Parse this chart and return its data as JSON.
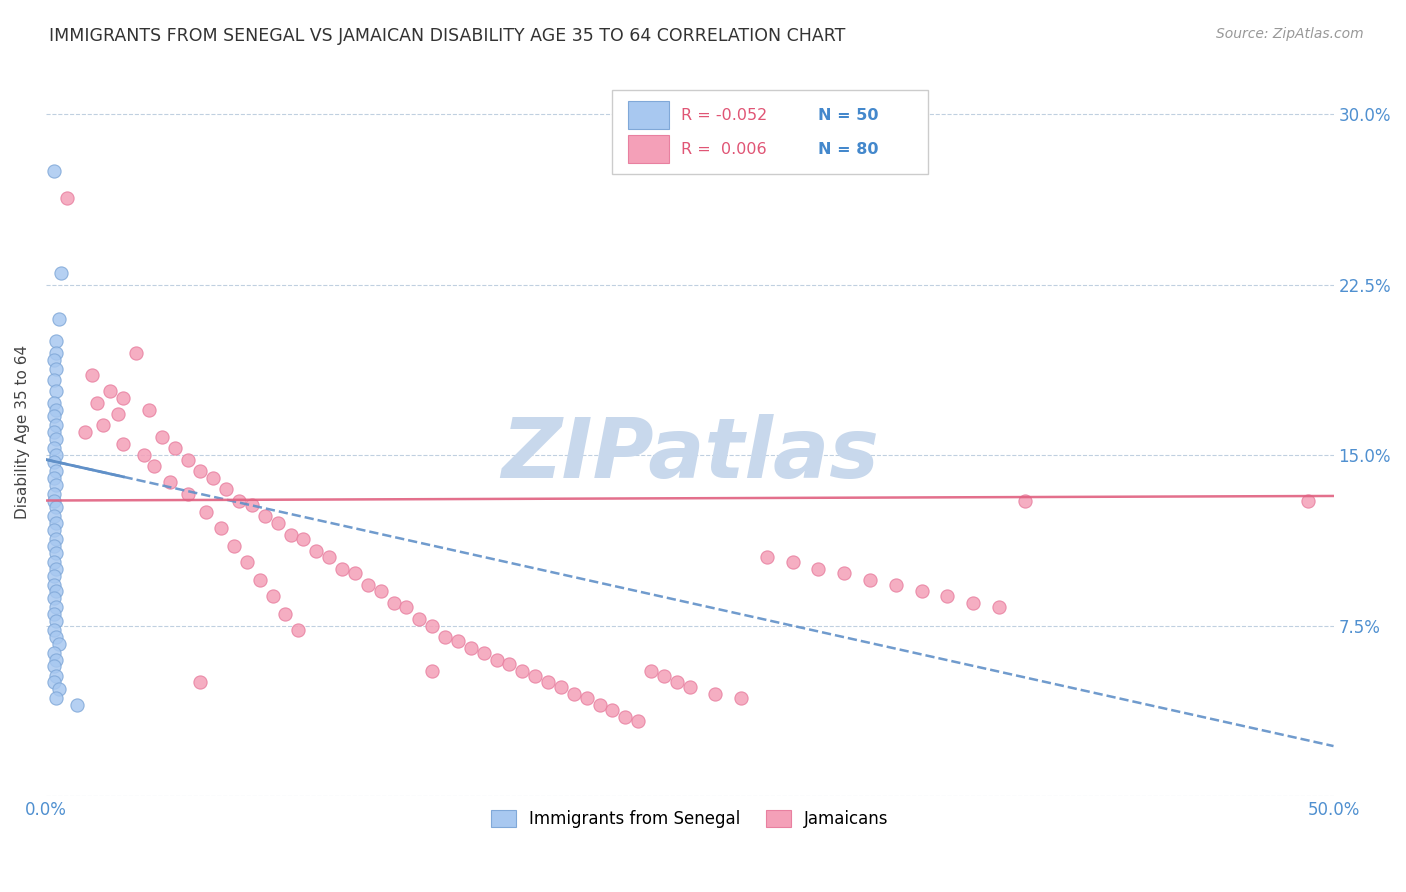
{
  "title": "IMMIGRANTS FROM SENEGAL VS JAMAICAN DISABILITY AGE 35 TO 64 CORRELATION CHART",
  "source": "Source: ZipAtlas.com",
  "ylabel": "Disability Age 35 to 64",
  "color_senegal": "#a8c8f0",
  "color_jamaican": "#f4a0b8",
  "edge_senegal": "#80a8d8",
  "edge_jamaican": "#e880a0",
  "trendline_senegal_color": "#6090c8",
  "trendline_jamaican_color": "#e06080",
  "watermark_color": "#c8d8ec",
  "xlim": [
    0,
    0.5
  ],
  "ylim": [
    0,
    0.32
  ],
  "scatter_senegal": [
    [
      0.003,
      0.275
    ],
    [
      0.006,
      0.23
    ],
    [
      0.005,
      0.21
    ],
    [
      0.004,
      0.2
    ],
    [
      0.004,
      0.195
    ],
    [
      0.003,
      0.192
    ],
    [
      0.004,
      0.188
    ],
    [
      0.003,
      0.183
    ],
    [
      0.004,
      0.178
    ],
    [
      0.003,
      0.173
    ],
    [
      0.004,
      0.17
    ],
    [
      0.003,
      0.167
    ],
    [
      0.004,
      0.163
    ],
    [
      0.003,
      0.16
    ],
    [
      0.004,
      0.157
    ],
    [
      0.003,
      0.153
    ],
    [
      0.004,
      0.15
    ],
    [
      0.003,
      0.147
    ],
    [
      0.004,
      0.143
    ],
    [
      0.003,
      0.14
    ],
    [
      0.004,
      0.137
    ],
    [
      0.003,
      0.133
    ],
    [
      0.003,
      0.13
    ],
    [
      0.004,
      0.127
    ],
    [
      0.003,
      0.123
    ],
    [
      0.004,
      0.12
    ],
    [
      0.003,
      0.117
    ],
    [
      0.004,
      0.113
    ],
    [
      0.003,
      0.11
    ],
    [
      0.004,
      0.107
    ],
    [
      0.003,
      0.103
    ],
    [
      0.004,
      0.1
    ],
    [
      0.003,
      0.097
    ],
    [
      0.003,
      0.093
    ],
    [
      0.004,
      0.09
    ],
    [
      0.003,
      0.087
    ],
    [
      0.004,
      0.083
    ],
    [
      0.003,
      0.08
    ],
    [
      0.004,
      0.077
    ],
    [
      0.003,
      0.073
    ],
    [
      0.004,
      0.07
    ],
    [
      0.005,
      0.067
    ],
    [
      0.003,
      0.063
    ],
    [
      0.004,
      0.06
    ],
    [
      0.003,
      0.057
    ],
    [
      0.004,
      0.053
    ],
    [
      0.003,
      0.05
    ],
    [
      0.005,
      0.047
    ],
    [
      0.004,
      0.043
    ],
    [
      0.012,
      0.04
    ]
  ],
  "scatter_jamaican": [
    [
      0.008,
      0.263
    ],
    [
      0.035,
      0.195
    ],
    [
      0.018,
      0.185
    ],
    [
      0.025,
      0.178
    ],
    [
      0.03,
      0.175
    ],
    [
      0.02,
      0.173
    ],
    [
      0.04,
      0.17
    ],
    [
      0.028,
      0.168
    ],
    [
      0.022,
      0.163
    ],
    [
      0.015,
      0.16
    ],
    [
      0.045,
      0.158
    ],
    [
      0.03,
      0.155
    ],
    [
      0.05,
      0.153
    ],
    [
      0.038,
      0.15
    ],
    [
      0.055,
      0.148
    ],
    [
      0.042,
      0.145
    ],
    [
      0.06,
      0.143
    ],
    [
      0.065,
      0.14
    ],
    [
      0.048,
      0.138
    ],
    [
      0.07,
      0.135
    ],
    [
      0.055,
      0.133
    ],
    [
      0.075,
      0.13
    ],
    [
      0.08,
      0.128
    ],
    [
      0.062,
      0.125
    ],
    [
      0.085,
      0.123
    ],
    [
      0.09,
      0.12
    ],
    [
      0.068,
      0.118
    ],
    [
      0.095,
      0.115
    ],
    [
      0.1,
      0.113
    ],
    [
      0.073,
      0.11
    ],
    [
      0.105,
      0.108
    ],
    [
      0.11,
      0.105
    ],
    [
      0.078,
      0.103
    ],
    [
      0.115,
      0.1
    ],
    [
      0.12,
      0.098
    ],
    [
      0.083,
      0.095
    ],
    [
      0.125,
      0.093
    ],
    [
      0.13,
      0.09
    ],
    [
      0.088,
      0.088
    ],
    [
      0.135,
      0.085
    ],
    [
      0.14,
      0.083
    ],
    [
      0.093,
      0.08
    ],
    [
      0.145,
      0.078
    ],
    [
      0.15,
      0.075
    ],
    [
      0.098,
      0.073
    ],
    [
      0.155,
      0.07
    ],
    [
      0.16,
      0.068
    ],
    [
      0.165,
      0.065
    ],
    [
      0.17,
      0.063
    ],
    [
      0.175,
      0.06
    ],
    [
      0.18,
      0.058
    ],
    [
      0.185,
      0.055
    ],
    [
      0.19,
      0.053
    ],
    [
      0.195,
      0.05
    ],
    [
      0.2,
      0.048
    ],
    [
      0.205,
      0.045
    ],
    [
      0.21,
      0.043
    ],
    [
      0.215,
      0.04
    ],
    [
      0.22,
      0.038
    ],
    [
      0.225,
      0.035
    ],
    [
      0.23,
      0.033
    ],
    [
      0.235,
      0.055
    ],
    [
      0.24,
      0.053
    ],
    [
      0.245,
      0.05
    ],
    [
      0.25,
      0.048
    ],
    [
      0.26,
      0.045
    ],
    [
      0.27,
      0.043
    ],
    [
      0.28,
      0.105
    ],
    [
      0.29,
      0.103
    ],
    [
      0.3,
      0.1
    ],
    [
      0.31,
      0.098
    ],
    [
      0.32,
      0.095
    ],
    [
      0.33,
      0.093
    ],
    [
      0.34,
      0.09
    ],
    [
      0.35,
      0.088
    ],
    [
      0.36,
      0.085
    ],
    [
      0.37,
      0.083
    ],
    [
      0.38,
      0.13
    ],
    [
      0.49,
      0.13
    ],
    [
      0.06,
      0.05
    ],
    [
      0.15,
      0.055
    ]
  ],
  "trendline_senegal": [
    [
      0.0,
      0.148
    ],
    [
      0.5,
      0.022
    ]
  ],
  "trendline_jamaican": [
    [
      0.0,
      0.13
    ],
    [
      0.5,
      0.132
    ]
  ]
}
